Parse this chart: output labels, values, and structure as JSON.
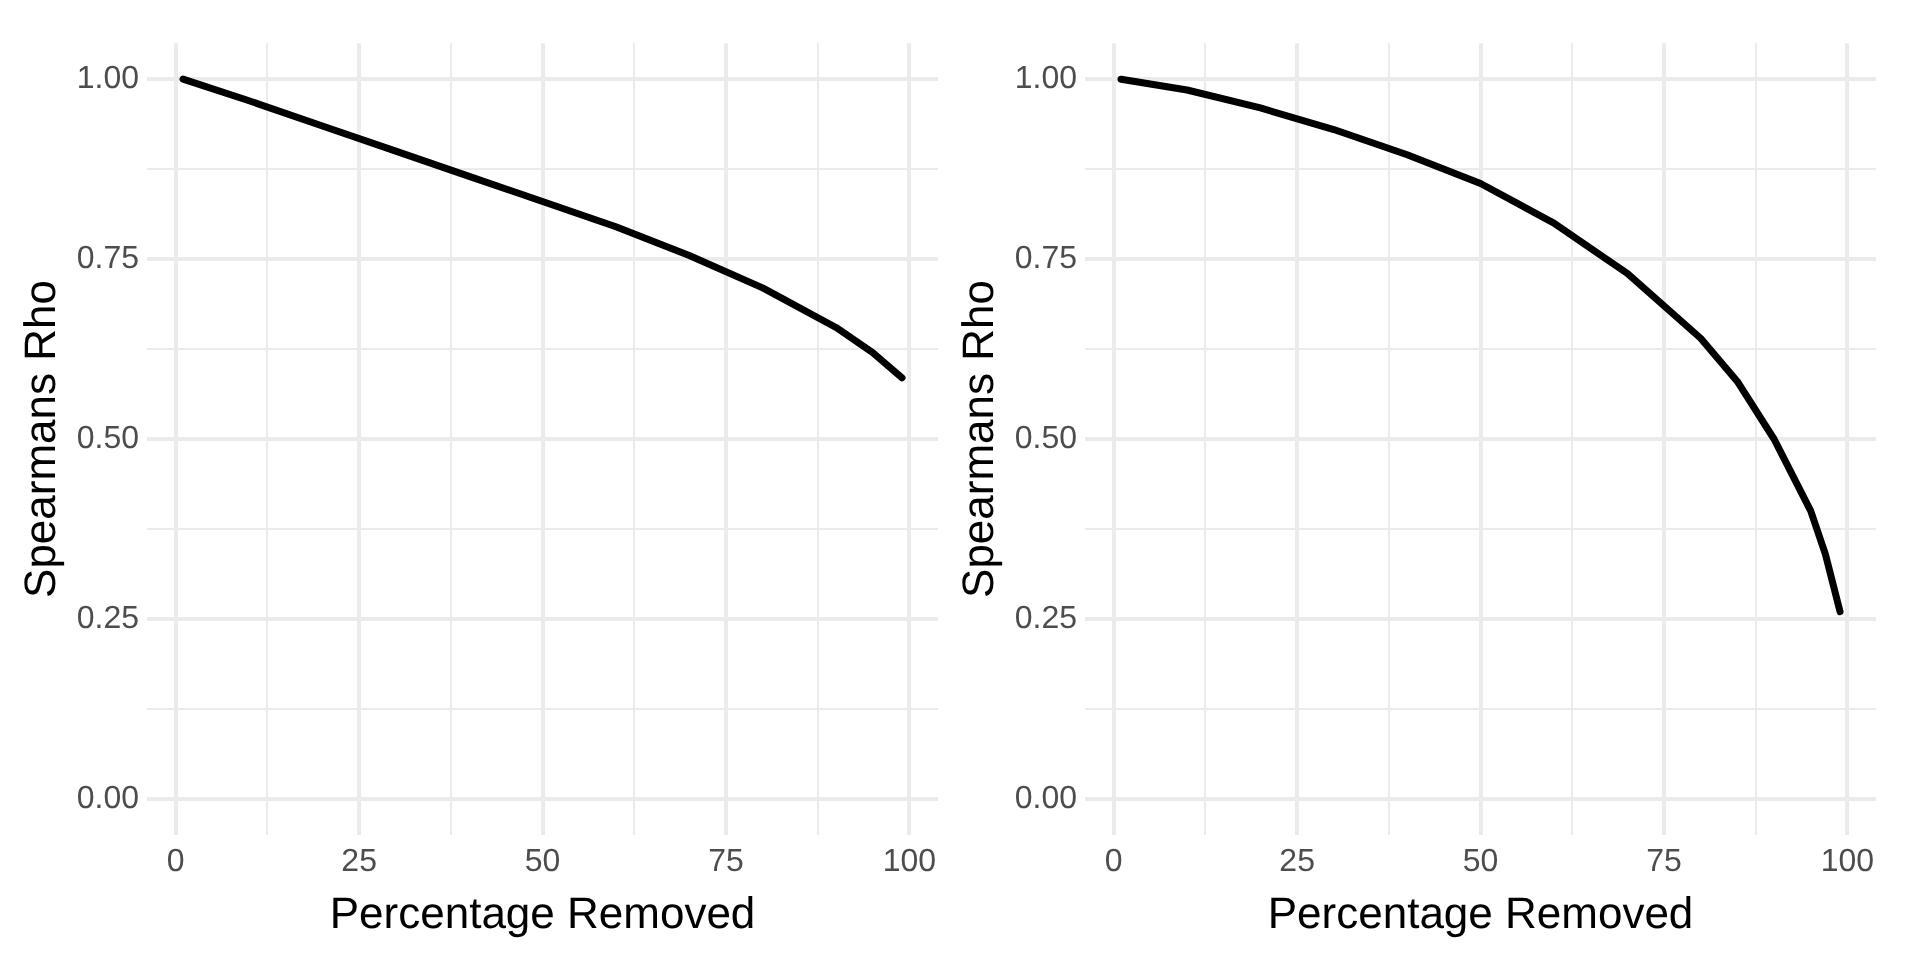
{
  "chart_data": [
    {
      "type": "line",
      "xlabel": "Percentage Removed",
      "ylabel": "Spearmans Rho",
      "grid": true,
      "marker": "none",
      "x": [
        1,
        10,
        20,
        30,
        40,
        50,
        60,
        70,
        80,
        90,
        95,
        99
      ],
      "series": [
        {
          "color": "#000000",
          "values": [
            1.0,
            0.97,
            0.935,
            0.9,
            0.865,
            0.83,
            0.795,
            0.755,
            0.71,
            0.655,
            0.62,
            0.585
          ]
        }
      ],
      "xlim": [
        -3.9,
        103.9
      ],
      "ylim": [
        -0.05,
        1.05
      ],
      "xticks": [
        0,
        {
          "value": 12.5,
          "label": null
        },
        25,
        {
          "value": 37.5,
          "label": null
        },
        50,
        {
          "value": 62.5,
          "label": null
        },
        75,
        {
          "value": 87.5,
          "label": null
        },
        100
      ],
      "yticks": [
        {
          "value": 0,
          "label": "0.00"
        },
        {
          "value": 0.125,
          "label": null
        },
        {
          "value": 0.25,
          "label": "0.25"
        },
        {
          "value": 0.375,
          "label": null
        },
        {
          "value": 0.5,
          "label": "0.50"
        },
        {
          "value": 0.625,
          "label": null
        },
        {
          "value": 0.75,
          "label": "0.75"
        },
        {
          "value": 0.875,
          "label": null
        },
        {
          "value": 1,
          "label": "1.00"
        }
      ]
    },
    {
      "type": "line",
      "xlabel": "Percentage Removed",
      "ylabel": "Spearmans Rho",
      "grid": true,
      "marker": "none",
      "x": [
        1,
        10,
        20,
        30,
        40,
        50,
        60,
        70,
        80,
        85,
        90,
        95,
        97,
        99
      ],
      "series": [
        {
          "color": "#000000",
          "values": [
            1.0,
            0.985,
            0.96,
            0.93,
            0.895,
            0.855,
            0.8,
            0.73,
            0.64,
            0.58,
            0.5,
            0.4,
            0.34,
            0.26
          ]
        }
      ],
      "xlim": [
        -3.9,
        103.9
      ],
      "ylim": [
        -0.05,
        1.05
      ],
      "xticks": [
        0,
        {
          "value": 12.5,
          "label": null
        },
        25,
        {
          "value": 37.5,
          "label": null
        },
        50,
        {
          "value": 62.5,
          "label": null
        },
        75,
        {
          "value": 87.5,
          "label": null
        },
        100
      ],
      "yticks": [
        {
          "value": 0,
          "label": "0.00"
        },
        {
          "value": 0.125,
          "label": null
        },
        {
          "value": 0.25,
          "label": "0.25"
        },
        {
          "value": 0.375,
          "label": null
        },
        {
          "value": 0.5,
          "label": "0.50"
        },
        {
          "value": 0.625,
          "label": null
        },
        {
          "value": 0.75,
          "label": "0.75"
        },
        {
          "value": 0.875,
          "label": null
        },
        {
          "value": 1,
          "label": "1.00"
        }
      ]
    }
  ]
}
